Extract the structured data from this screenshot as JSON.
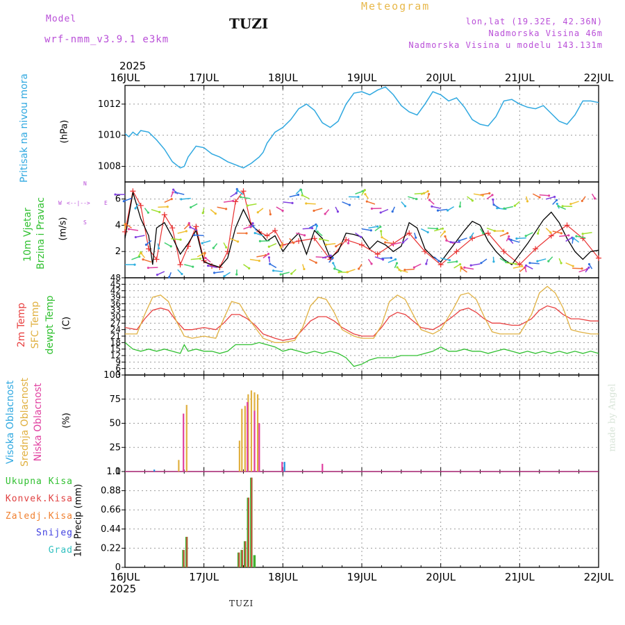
{
  "header": {
    "model_label": "Model",
    "model_name": "wrf-nmm_v3.9.1 e3km",
    "station": "TUZI",
    "title": "Meteogram",
    "coords": "lon,lat (19.32E, 42.36N)",
    "elevation": "Nadmorska Visina 46m",
    "model_elevation": "Nadmorska Visina u modelu 143.131m",
    "credit": "made by Angel"
  },
  "footer": {
    "station": "TUZI"
  },
  "colors": {
    "pressure": "#2fa8e0",
    "wind_speed": "#000000",
    "wind_gust": "#e83030",
    "t2m": "#e84040",
    "sfc": "#e0b040",
    "dew": "#30c030",
    "cloud_high": "#2090e0",
    "cloud_mid": "#e0b040",
    "cloud_low": "#e040a0",
    "precip_total": "#40b030",
    "precip_conv": "#e04040",
    "precip_frz": "#f08030",
    "snow": "#4040e0",
    "hail": "#30c0c0"
  },
  "axis": {
    "year": "2025",
    "dates": [
      "16JUL",
      "17JUL",
      "18JUL",
      "19JUL",
      "20JUL",
      "21JUL",
      "22JUL"
    ]
  },
  "panels": {
    "pressure": {
      "label": "Pritisak na nivou mora",
      "unit": "(hPa)"
    },
    "wind": {
      "label1": "10m Vjetar",
      "label2": "Brzina i Pravac",
      "unit": "(m/s)",
      "compass_n": "N",
      "compass_s": "S",
      "compass_w": "W",
      "compass_e": "E",
      "compass_arrow": "<--|-->"
    },
    "temp": {
      "label1": "2m Temp",
      "label2": "SFC Temp",
      "label3": "dewpt Temp",
      "unit": "(C)"
    },
    "cloud": {
      "label1": "Visoka Oblacnost",
      "label2": "Srednja Oblacnost",
      "label3": "Niska Oblacnost",
      "unit": "(%)"
    },
    "precip": {
      "unit": "1hr Precip (mm)",
      "legend": [
        "Ukupna Kisa",
        "Konvek.Kisa",
        "Zaledj.Kisa",
        "Snijeg",
        "Grad"
      ]
    }
  },
  "chart_data": [
    {
      "type": "line",
      "title": "Pritisak na nivou mora",
      "ylabel": "hPa",
      "ylim": [
        1007,
        1013.2
      ],
      "yticks": [
        1008,
        1010,
        1012
      ],
      "x_days": [
        0,
        0.05,
        0.1,
        0.15,
        0.2,
        0.3,
        0.4,
        0.5,
        0.6,
        0.7,
        0.75,
        0.8,
        0.9,
        1.0,
        1.1,
        1.2,
        1.3,
        1.4,
        1.5,
        1.6,
        1.7,
        1.75,
        1.8,
        1.9,
        2.0,
        2.1,
        2.2,
        2.3,
        2.4,
        2.5,
        2.6,
        2.7,
        2.8,
        2.9,
        3.0,
        3.1,
        3.2,
        3.3,
        3.4,
        3.5,
        3.6,
        3.7,
        3.8,
        3.9,
        4.0,
        4.1,
        4.2,
        4.3,
        4.4,
        4.5,
        4.6,
        4.7,
        4.8,
        4.9,
        5.0,
        5.1,
        5.2,
        5.3,
        5.4,
        5.5,
        5.6,
        5.7,
        5.8,
        5.9,
        6.0
      ],
      "values": [
        1010.1,
        1009.9,
        1010.2,
        1010.0,
        1010.3,
        1010.2,
        1009.7,
        1009.1,
        1008.3,
        1007.9,
        1008.0,
        1008.6,
        1009.3,
        1009.2,
        1008.8,
        1008.6,
        1008.3,
        1008.1,
        1007.9,
        1008.2,
        1008.6,
        1008.9,
        1009.5,
        1010.2,
        1010.5,
        1011.0,
        1011.7,
        1012.0,
        1011.6,
        1010.8,
        1010.5,
        1010.9,
        1012.0,
        1012.7,
        1012.8,
        1012.6,
        1012.9,
        1013.1,
        1012.6,
        1011.9,
        1011.5,
        1011.3,
        1012.0,
        1012.8,
        1012.6,
        1012.2,
        1012.4,
        1011.8,
        1011.0,
        1010.7,
        1010.6,
        1011.2,
        1012.2,
        1012.3,
        1012.0,
        1011.8,
        1011.7,
        1011.9,
        1011.4,
        1010.9,
        1010.7,
        1011.3,
        1012.2,
        1012.2,
        1012.1
      ]
    },
    {
      "type": "line",
      "title": "10m Vjetar Brzina i Pravac",
      "ylabel": "m/s",
      "ylim": [
        0,
        7.3
      ],
      "yticks": [
        2,
        4,
        6
      ],
      "series": [
        {
          "name": "wind speed",
          "x_days": [
            0,
            0.1,
            0.2,
            0.3,
            0.35,
            0.4,
            0.5,
            0.6,
            0.7,
            0.8,
            0.9,
            1.0,
            1.1,
            1.2,
            1.3,
            1.4,
            1.5,
            1.6,
            1.7,
            1.8,
            1.9,
            2.0,
            2.1,
            2.2,
            2.3,
            2.4,
            2.5,
            2.6,
            2.7,
            2.8,
            2.9,
            3.0,
            3.1,
            3.2,
            3.3,
            3.4,
            3.5,
            3.6,
            3.7,
            3.8,
            3.9,
            4.0,
            4.1,
            4.2,
            4.3,
            4.4,
            4.5,
            4.6,
            4.7,
            4.8,
            4.9,
            5.0,
            5.1,
            5.2,
            5.3,
            5.4,
            5.5,
            5.6,
            5.7,
            5.8,
            5.9,
            6.0
          ],
          "values": [
            3.0,
            6.5,
            4.5,
            3.2,
            1.0,
            3.8,
            4.2,
            3.1,
            1.8,
            2.6,
            3.6,
            1.2,
            1.0,
            0.8,
            1.5,
            3.8,
            5.2,
            4.0,
            3.5,
            2.8,
            3.2,
            2.0,
            2.8,
            3.4,
            1.8,
            3.6,
            3.0,
            1.5,
            2.0,
            3.4,
            3.3,
            3.1,
            2.2,
            2.8,
            2.5,
            2.0,
            2.4,
            4.2,
            3.8,
            2.2,
            1.6,
            1.2,
            2.0,
            2.8,
            3.6,
            4.3,
            4.0,
            2.8,
            2.0,
            1.4,
            1.0,
            1.8,
            2.6,
            3.5,
            4.4,
            5.0,
            4.2,
            3.0,
            2.0,
            1.4,
            2.0,
            2.1
          ]
        },
        {
          "name": "wind gust",
          "x_days": [
            0,
            0.1,
            0.2,
            0.3,
            0.4,
            0.5,
            0.6,
            0.7,
            0.8,
            0.9,
            1.0,
            1.1,
            1.2,
            1.3,
            1.4,
            1.5,
            1.6,
            1.7,
            1.8,
            1.9,
            2.0,
            2.2,
            2.4,
            2.6,
            2.8,
            3.0,
            3.2,
            3.4,
            3.6,
            3.8,
            4.0,
            4.2,
            4.4,
            4.6,
            4.8,
            5.0,
            5.2,
            5.4,
            5.6,
            5.8,
            6.0
          ],
          "values": [
            3.5,
            6.6,
            5.5,
            2.2,
            1.4,
            4.8,
            3.8,
            1.0,
            2.4,
            3.9,
            1.3,
            0.9,
            0.8,
            2.0,
            5.8,
            6.6,
            4.0,
            3.5,
            3.2,
            3.6,
            2.5,
            2.8,
            3.0,
            1.4,
            2.9,
            2.5,
            1.8,
            2.6,
            3.4,
            2.0,
            1.0,
            2.0,
            3.0,
            3.4,
            2.0,
            1.0,
            2.2,
            3.2,
            4.0,
            3.0,
            1.5
          ]
        }
      ],
      "arrow_rows": [
        1,
        3.2,
        5.8
      ]
    },
    {
      "type": "line",
      "title": "Temperatura",
      "ylabel": "C",
      "ylim": [
        3,
        48
      ],
      "yticks": [
        3,
        6,
        9,
        12,
        15,
        18,
        21,
        24,
        27,
        30,
        33,
        36,
        39,
        42,
        45,
        48
      ],
      "series": [
        {
          "name": "2m Temp",
          "x_days": [
            0,
            0.15,
            0.25,
            0.35,
            0.45,
            0.55,
            0.65,
            0.75,
            0.85,
            1.0,
            1.15,
            1.25,
            1.35,
            1.45,
            1.55,
            1.65,
            1.75,
            1.9,
            2.0,
            2.15,
            2.25,
            2.35,
            2.45,
            2.55,
            2.65,
            2.75,
            2.9,
            3.0,
            3.15,
            3.25,
            3.35,
            3.45,
            3.55,
            3.65,
            3.75,
            3.9,
            4.0,
            4.15,
            4.25,
            4.35,
            4.45,
            4.55,
            4.65,
            4.75,
            4.9,
            5.0,
            5.15,
            5.25,
            5.35,
            5.45,
            5.55,
            5.65,
            5.75,
            5.9,
            6.0
          ],
          "values": [
            25,
            24,
            29,
            33,
            34,
            33,
            28,
            24,
            24,
            25,
            24,
            27,
            31,
            31,
            29,
            26,
            22,
            20,
            19,
            20,
            24,
            28,
            30,
            30,
            28,
            25,
            22,
            21,
            21,
            25,
            30,
            32,
            31,
            28,
            25,
            24,
            26,
            30,
            33,
            34,
            32,
            29,
            27,
            27,
            26,
            26,
            29,
            33,
            35,
            34,
            31,
            29,
            29,
            28,
            28
          ]
        },
        {
          "name": "SFC Temp",
          "x_days": [
            0,
            0.15,
            0.25,
            0.35,
            0.45,
            0.55,
            0.65,
            0.75,
            0.85,
            1.0,
            1.15,
            1.25,
            1.35,
            1.45,
            1.55,
            1.65,
            1.75,
            1.9,
            2.0,
            2.15,
            2.25,
            2.35,
            2.45,
            2.55,
            2.65,
            2.75,
            2.9,
            3.0,
            3.15,
            3.25,
            3.35,
            3.45,
            3.55,
            3.65,
            3.75,
            3.9,
            4.0,
            4.15,
            4.25,
            4.35,
            4.45,
            4.55,
            4.65,
            4.75,
            4.9,
            5.0,
            5.15,
            5.25,
            5.35,
            5.45,
            5.55,
            5.65,
            5.75,
            5.9,
            6.0
          ],
          "values": [
            22,
            22,
            31,
            39,
            40,
            37,
            28,
            21,
            20,
            21,
            20,
            29,
            37,
            36,
            30,
            25,
            20,
            18,
            18,
            19,
            25,
            35,
            39,
            38,
            32,
            24,
            21,
            20,
            20,
            26,
            37,
            40,
            38,
            31,
            24,
            22,
            24,
            33,
            40,
            41,
            38,
            30,
            23,
            22,
            22,
            22,
            31,
            41,
            44,
            41,
            34,
            24,
            23,
            22,
            22
          ]
        },
        {
          "name": "dewpt Temp",
          "x_days": [
            0,
            0.1,
            0.2,
            0.3,
            0.4,
            0.5,
            0.6,
            0.7,
            0.75,
            0.8,
            0.9,
            1.0,
            1.1,
            1.2,
            1.3,
            1.4,
            1.5,
            1.6,
            1.7,
            1.8,
            1.9,
            2.0,
            2.1,
            2.2,
            2.3,
            2.4,
            2.5,
            2.6,
            2.7,
            2.8,
            2.9,
            3.0,
            3.1,
            3.2,
            3.3,
            3.4,
            3.5,
            3.6,
            3.7,
            3.8,
            3.9,
            4.0,
            4.1,
            4.2,
            4.3,
            4.4,
            4.5,
            4.6,
            4.7,
            4.8,
            4.9,
            5.0,
            5.1,
            5.2,
            5.3,
            5.4,
            5.5,
            5.6,
            5.7,
            5.8,
            5.9,
            6.0
          ],
          "values": [
            18,
            15,
            14,
            15,
            14,
            15,
            14,
            13,
            17,
            14,
            15,
            14,
            14,
            13,
            14,
            17,
            17,
            17,
            18,
            17,
            16,
            14,
            15,
            14,
            13,
            14,
            13,
            14,
            13,
            11,
            7,
            8,
            10,
            11,
            11,
            11,
            12,
            12,
            12,
            13,
            14,
            16,
            14,
            14,
            15,
            14,
            14,
            13,
            14,
            15,
            14,
            13,
            14,
            13,
            14,
            13,
            14,
            13,
            14,
            13,
            14,
            13
          ]
        }
      ]
    },
    {
      "type": "bar",
      "title": "Oblacnost",
      "ylabel": "%",
      "ylim": [
        0,
        100
      ],
      "yticks": [
        0,
        25,
        50,
        75,
        100
      ],
      "series": [
        {
          "name": "Visoka Oblacnost",
          "x_days": [
            0.37,
            2.02
          ],
          "values": [
            2,
            10
          ]
        },
        {
          "name": "Srednja Oblacnost",
          "x_days": [
            0.68,
            0.78,
            1.45,
            1.48,
            1.52,
            1.56,
            1.6,
            1.64,
            1.68
          ],
          "values": [
            12,
            69,
            32,
            65,
            68,
            80,
            84,
            82,
            80
          ]
        },
        {
          "name": "Niska Oblacnost",
          "x_days": [
            0.74,
            1.55,
            1.64,
            1.7,
            1.99,
            2.5
          ],
          "values": [
            60,
            72,
            63,
            50,
            10,
            8
          ]
        }
      ]
    },
    {
      "type": "bar",
      "title": "1hr Precip",
      "ylabel": "mm",
      "ylim": [
        0,
        1.1
      ],
      "yticks": [
        0,
        0.22,
        0.44,
        0.66,
        0.88,
        1.1
      ],
      "series": [
        {
          "name": "Ukupna Kisa",
          "x_days": [
            0.74,
            0.78,
            1.44,
            1.48,
            1.52,
            1.56,
            1.6,
            1.64,
            1.68
          ],
          "values": [
            0.2,
            0.35,
            0.17,
            0.2,
            0.3,
            0.8,
            1.03,
            0.14,
            0.0
          ]
        },
        {
          "name": "Konvek.Kisa",
          "x_days": [
            0.745,
            0.785,
            1.445,
            1.485,
            1.525,
            1.565,
            1.605
          ],
          "values": [
            0.2,
            0.35,
            0.17,
            0.2,
            0.3,
            0.8,
            1.03
          ]
        },
        {
          "name": "Zaledj.Kisa",
          "x_days": [],
          "values": []
        },
        {
          "name": "Snijeg",
          "x_days": [],
          "values": []
        },
        {
          "name": "Grad",
          "x_days": [],
          "values": []
        }
      ]
    }
  ]
}
